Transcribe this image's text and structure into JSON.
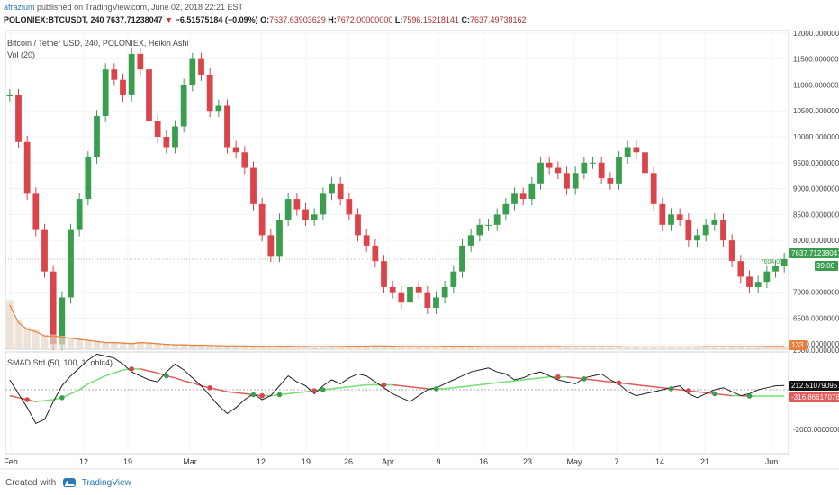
{
  "header": {
    "author": "afrazium",
    "published": "published on TradingView.com, June 02, 2018 22:21 EST",
    "symbol": "POLONIEX:BTCUSDT, 240",
    "last": "7637.71238047",
    "change": "−6.51575184 (−0.09%)",
    "open_label": "O:",
    "open": "7637.63903629",
    "high_label": "H:",
    "high": "7672.00000000",
    "low_label": "L:",
    "low": "7596.15218141",
    "close_label": "C:",
    "close": "7637.49738162"
  },
  "main_pane": {
    "legend_title": "Bitcoin / Tether USD, 240, POLONIEX, Heikin Ashi",
    "legend_vol": "Vol (20)",
    "price_axis": [
      "12000.00000000",
      "11500.00000000",
      "11000.00000000",
      "10500.00000000",
      "10000.00000000",
      "9500.00000000",
      "9000.00000000",
      "8500.00000000",
      "8000.00000000",
      "7000.00000000",
      "6500.00000000",
      "6000.00000000"
    ],
    "price_badge": "7637.71238047",
    "price_badge_sub": "7604.0...",
    "vol_badge": "39.00",
    "vol_badge2": "133"
  },
  "sub_pane": {
    "legend": "SMAD Std (50, 100, 1, ohlc4)",
    "axis": [
      "2000.00000000",
      "-2000.00000000"
    ],
    "badge_black": "212.51079095",
    "badge_red": "-316.86617076"
  },
  "time_axis": [
    "Feb",
    "12",
    "19",
    "Mar",
    "12",
    "19",
    "26",
    "Apr",
    "9",
    "16",
    "23",
    "May",
    "7",
    "14",
    "21",
    "Jun"
  ],
  "footer": {
    "created": "Created with",
    "brand": "TradingView"
  },
  "colors": {
    "up": "#3a9e4e",
    "down": "#d9454a",
    "vol": "#e8803a",
    "smad_line": "#222222",
    "smad_up": "#6ee06e",
    "smad_down": "#e25a5a"
  },
  "chart_data": {
    "type": "line",
    "series": [
      {
        "values": [
          10800,
          9900,
          8900,
          8200,
          7400,
          6000,
          6900,
          8200,
          8800,
          9600,
          10400,
          11300,
          11100,
          10800,
          11600,
          11300,
          10300,
          10000,
          9800,
          10200,
          11000,
          11500,
          11200,
          10500,
          10600,
          9800,
          9700,
          9400,
          8700,
          8100,
          7700,
          8400,
          8800,
          8600,
          8400,
          8500,
          8900,
          9100,
          8800,
          8500,
          8100,
          7900,
          7600,
          7100,
          7000,
          6800,
          7100,
          7000,
          6700,
          6900,
          7100,
          7400,
          7900,
          8100,
          8300,
          8300,
          8500,
          8700,
          8900,
          8800,
          9100,
          9500,
          9400,
          9300,
          9000,
          9300,
          9500,
          9500,
          9200,
          9100,
          9600,
          9800,
          9700,
          9300,
          8700,
          8300,
          8500,
          8400,
          8000,
          8100,
          8300,
          8400,
          8000,
          7600,
          7300,
          7100,
          7200,
          7400,
          7500,
          7640
        ]
      },
      {
        "values": [
          2000,
          1200,
          900,
          800,
          600,
          600,
          550,
          500,
          450,
          400,
          350,
          300,
          300,
          280,
          250,
          300,
          280,
          250,
          220,
          200,
          200,
          180,
          180,
          170,
          160,
          150,
          150,
          150,
          140,
          140,
          130,
          140,
          140,
          130,
          130,
          120,
          120,
          130,
          130,
          140,
          140,
          140,
          150,
          150,
          140,
          130,
          130,
          130,
          130,
          130,
          140,
          140,
          140,
          140,
          130,
          130,
          130,
          130,
          130,
          130,
          130,
          130,
          130,
          130,
          120,
          120,
          120,
          120,
          120,
          120,
          120,
          110,
          110,
          110,
          110,
          110,
          110,
          110,
          110,
          110,
          120,
          120,
          120,
          120,
          120,
          120,
          120,
          130,
          130,
          133
        ]
      },
      {
        "values": [
          500,
          -200,
          -900,
          -1700,
          -1500,
          -600,
          200,
          700,
          1100,
          1500,
          1800,
          1700,
          1600,
          1300,
          900,
          700,
          500,
          400,
          900,
          1300,
          1000,
          600,
          200,
          -300,
          -800,
          -1200,
          -900,
          -500,
          -200,
          -500,
          -300,
          200,
          700,
          400,
          200,
          -200,
          200,
          500,
          300,
          600,
          800,
          700,
          400,
          100,
          -200,
          -400,
          -600,
          -300,
          0,
          100,
          300,
          500,
          700,
          900,
          1000,
          1100,
          900,
          800,
          500,
          600,
          800,
          900,
          700,
          500,
          400,
          300,
          600,
          700,
          800,
          500,
          300,
          -100,
          -300,
          -200,
          -100,
          0,
          100,
          200,
          -200,
          -400,
          -200,
          0,
          100,
          -100,
          -300,
          -200,
          0,
          100,
          200,
          213
        ]
      },
      {
        "values": [
          -300,
          -400,
          -500,
          -600,
          -550,
          -500,
          -400,
          -200,
          0,
          300,
          500,
          700,
          850,
          1000,
          1050,
          1050,
          950,
          850,
          700,
          600,
          450,
          350,
          200,
          100,
          0,
          -100,
          -150,
          -200,
          -250,
          -300,
          -300,
          -250,
          -200,
          -150,
          -100,
          -50,
          0,
          50,
          100,
          150,
          200,
          250,
          250,
          250,
          250,
          200,
          150,
          100,
          50,
          50,
          50,
          100,
          150,
          200,
          250,
          300,
          350,
          400,
          450,
          500,
          550,
          600,
          650,
          650,
          650,
          600,
          550,
          500,
          450,
          400,
          350,
          300,
          250,
          200,
          150,
          100,
          50,
          0,
          -50,
          -100,
          -150,
          -200,
          -250,
          -300,
          -300,
          -320,
          -320,
          -317,
          -317,
          -317
        ]
      }
    ]
  }
}
